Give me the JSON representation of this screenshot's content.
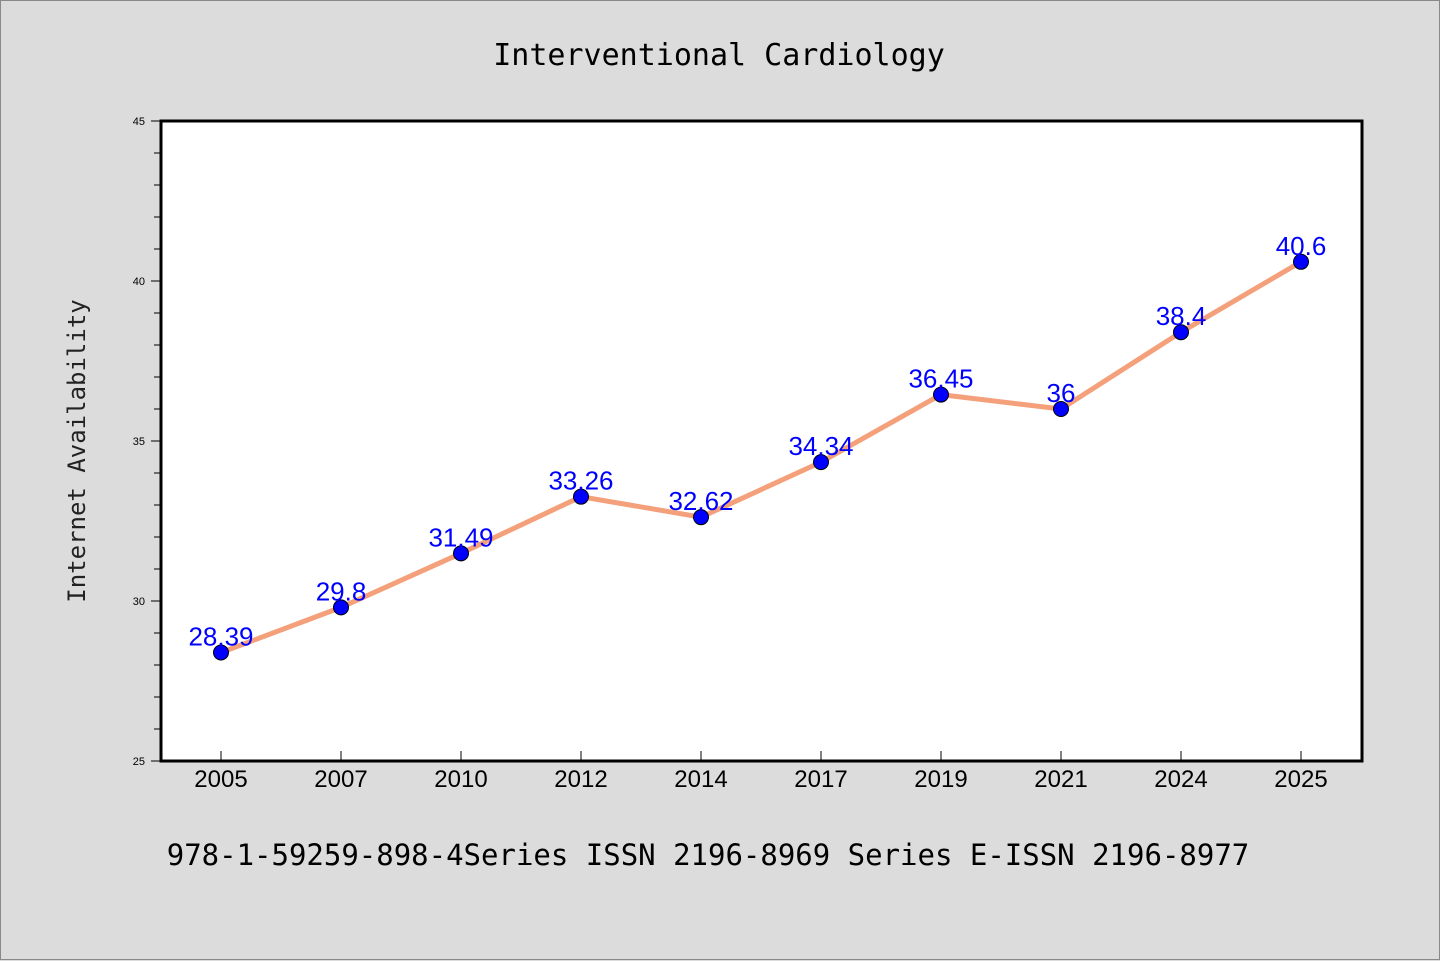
{
  "chart_data": {
    "type": "line",
    "title": "Interventional Cardiology",
    "xlabel": "",
    "ylabel": "Internet Availability",
    "categories": [
      "2005",
      "2007",
      "2010",
      "2012",
      "2014",
      "2017",
      "2019",
      "2021",
      "2024",
      "2025"
    ],
    "series": [
      {
        "values": [
          28.39,
          29.8,
          31.49,
          33.26,
          32.62,
          34.34,
          36.45,
          36,
          38.4,
          40.6
        ],
        "labels": [
          "28.39",
          "29.8",
          "31.49",
          "33.26",
          "32.62",
          "34.34",
          "36.45",
          "36",
          "38.4",
          "40.6"
        ],
        "line_color": "#f4a07a",
        "marker_color": "#0000ff",
        "label_color": "#0000ff"
      }
    ],
    "ylim": [
      25,
      45
    ],
    "yticks": [
      "25",
      "30",
      "35",
      "40",
      "45"
    ],
    "grid": false,
    "legend": "none"
  },
  "footer": "978-1-59259-898-4Series ISSN 2196-8969 Series E-ISSN 2196-8977"
}
